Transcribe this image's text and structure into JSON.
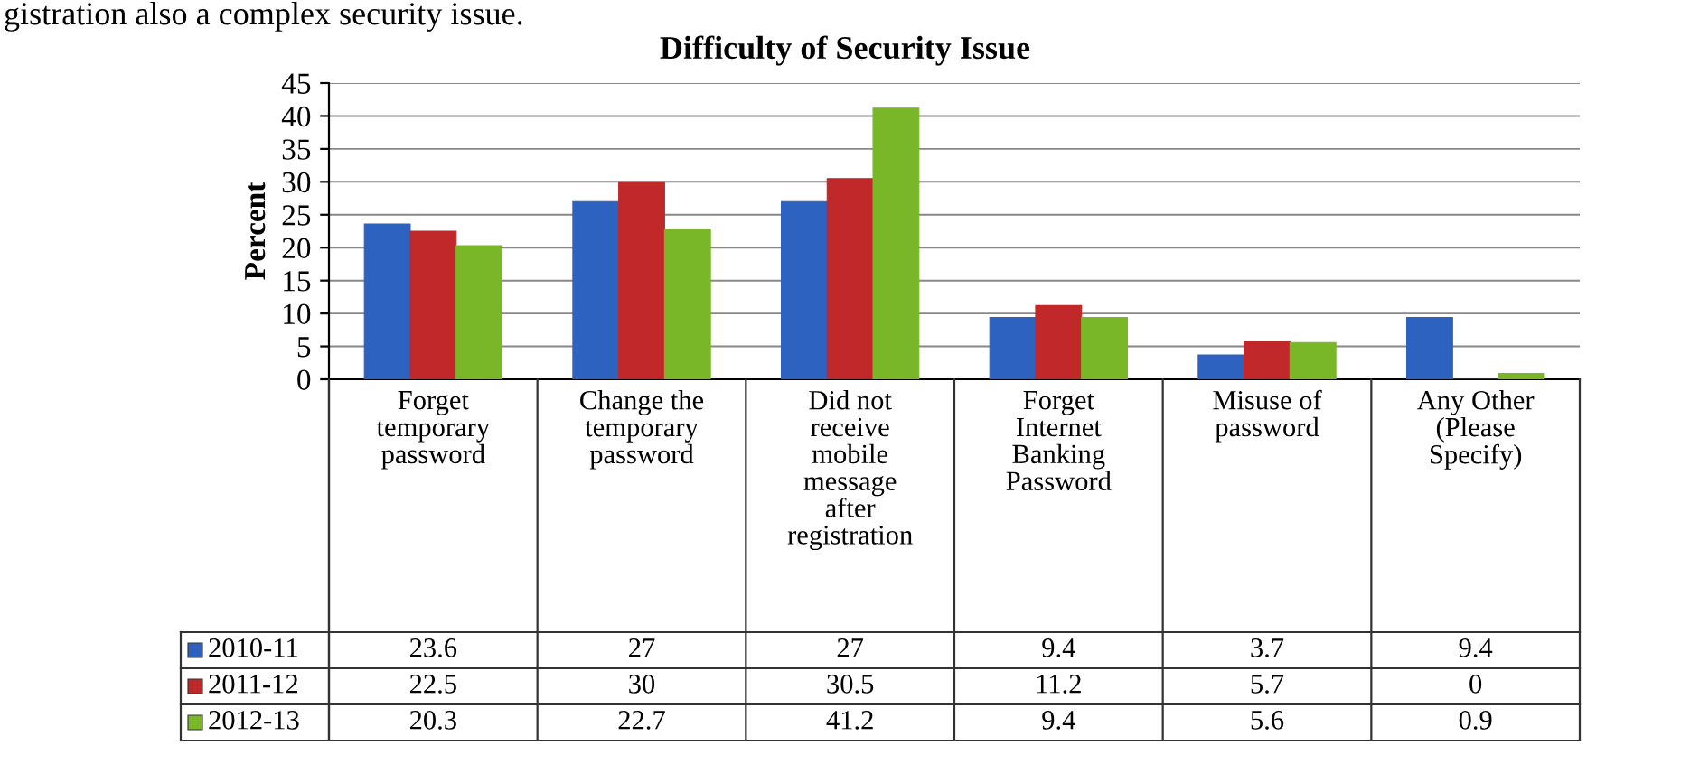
{
  "chart_data": {
    "type": "bar",
    "title": "Difficulty of Security Issue",
    "ylabel": "Percent",
    "annotations": [
      "gistration also a complex security issue."
    ],
    "categories": [
      "Forget\ntemporary\npassword",
      "Change the\ntemporary\npassword",
      "Did not\nreceive\nmobile\nmessage\nafter\nregistration",
      "Forget\nInternet\nBanking\nPassword",
      "Misuse of\npassword",
      "Any Other\n(Please\nSpecify)"
    ],
    "series": [
      {
        "name": "2010-11",
        "color": "#2e62c0",
        "values": [
          23.6,
          27,
          27,
          9.4,
          3.7,
          9.4
        ]
      },
      {
        "name": "2011-12",
        "color": "#c0282a",
        "values": [
          22.5,
          30,
          30.5,
          11.2,
          5.7,
          0
        ]
      },
      {
        "name": "2012-13",
        "color": "#7ab728",
        "values": [
          20.3,
          22.7,
          41.2,
          9.4,
          5.6,
          0.9
        ]
      }
    ],
    "ylim": [
      0,
      45
    ],
    "yticks": [
      0,
      5,
      10,
      15,
      20,
      25,
      30,
      35,
      40,
      45
    ],
    "grid": "y",
    "legend": "bottom left",
    "data_labels": true
  }
}
